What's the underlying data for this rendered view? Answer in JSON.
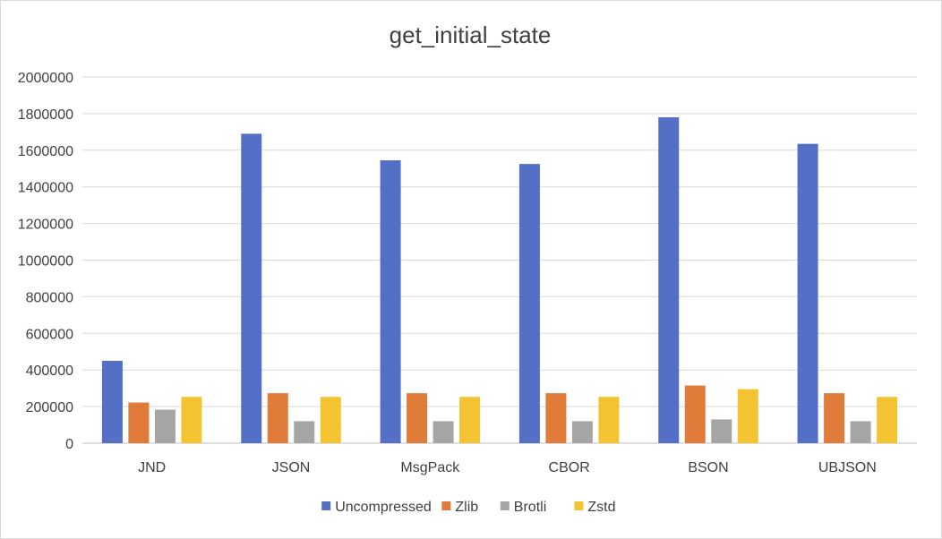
{
  "chart_data": {
    "type": "bar",
    "title": "get_initial_state",
    "xlabel": "",
    "ylabel": "",
    "categories": [
      "JND",
      "JSON",
      "MsgPack",
      "CBOR",
      "BSON",
      "UBJSON"
    ],
    "ylim": [
      0,
      2000000
    ],
    "yticks": [
      0,
      200000,
      400000,
      600000,
      800000,
      1000000,
      1200000,
      1400000,
      1600000,
      1800000,
      2000000
    ],
    "grid": true,
    "legend_position": "bottom",
    "series": [
      {
        "name": "Uncompressed",
        "color": "#5470c6",
        "values": [
          450000,
          1690000,
          1545000,
          1525000,
          1780000,
          1635000
        ]
      },
      {
        "name": "Zlib",
        "color": "#e07b39",
        "values": [
          222000,
          273000,
          273000,
          273000,
          315000,
          273000
        ]
      },
      {
        "name": "Brotli",
        "color": "#a5a5a5",
        "values": [
          183000,
          120000,
          120000,
          120000,
          130000,
          120000
        ]
      },
      {
        "name": "Zstd",
        "color": "#f4c331",
        "values": [
          253000,
          253000,
          253000,
          253000,
          295000,
          253000
        ]
      }
    ]
  }
}
